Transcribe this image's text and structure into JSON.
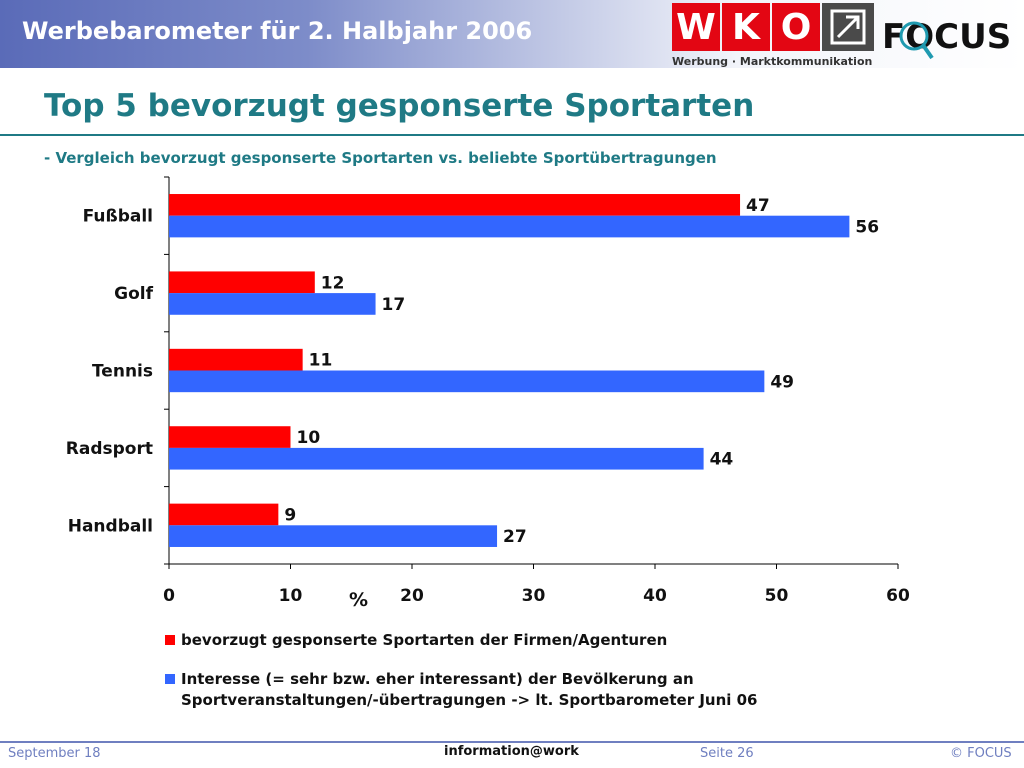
{
  "header": {
    "title": "Werbebarometer für 2. Halbjahr 2006"
  },
  "logos": {
    "wko_letters": [
      "W",
      "K",
      "O"
    ],
    "wko_subtitle": "Werbung · Marktkommunikation",
    "focus_text": "FOCUS"
  },
  "slide": {
    "title": "Top 5 bevorzugt gesponserte Sportarten",
    "subtitle": "- Vergleich bevorzugt gesponserte Sportarten vs. beliebte Sportübertragungen"
  },
  "chart_data": {
    "type": "bar",
    "orientation": "horizontal",
    "categories": [
      "Fußball",
      "Golf",
      "Tennis",
      "Radsport",
      "Handball"
    ],
    "series": [
      {
        "name": "bevorzugt gesponserte Sportarten der Firmen/Agenturen",
        "values": [
          47,
          12,
          11,
          10,
          9
        ],
        "color": "#ff0000"
      },
      {
        "name": "Interesse (= sehr bzw. eher interessant) der Bevölkerung an Sportveranstaltungen/-übertragungen -> lt. Sportbarometer Juni 06",
        "values": [
          56,
          17,
          49,
          44,
          27
        ],
        "color": "#3366ff"
      }
    ],
    "xlabel": "%",
    "xlim": [
      0,
      60
    ],
    "xticks": [
      0,
      10,
      20,
      30,
      40,
      50,
      60
    ],
    "grid": false,
    "legend_position": "bottom"
  },
  "footer": {
    "left": "September 18",
    "center": "information@work",
    "page": "Seite 26",
    "copyright": "© FOCUS"
  }
}
